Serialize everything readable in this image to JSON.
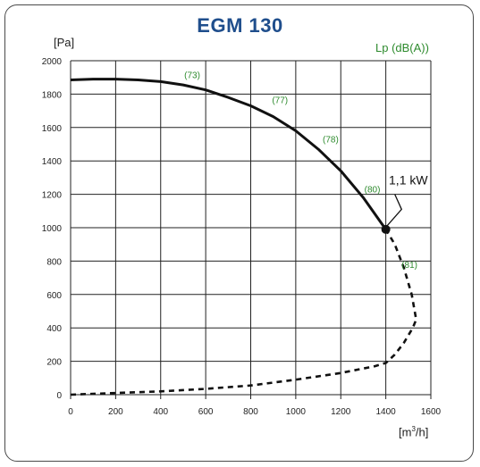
{
  "chart_data": {
    "type": "line",
    "title": "EGM 130",
    "ylabel": "[Pa]",
    "xlabel": "[m³/h]",
    "secondary_label": "Lp (dB(A))",
    "xlim": [
      0,
      1600
    ],
    "ylim": [
      0,
      2000
    ],
    "x_ticks": [
      "0",
      "200",
      "400",
      "600",
      "800",
      "1000",
      "1200",
      "1400",
      "1600"
    ],
    "y_ticks": [
      "0",
      "200",
      "400",
      "600",
      "800",
      "1000",
      "1200",
      "1400",
      "1600",
      "1800",
      "2000"
    ],
    "grid": true,
    "series": [
      {
        "style": "solid",
        "x": [
          0,
          100,
          200,
          300,
          400,
          500,
          600,
          700,
          800,
          900,
          1000,
          1100,
          1200,
          1300,
          1400
        ],
        "y": [
          1885,
          1890,
          1890,
          1885,
          1875,
          1855,
          1825,
          1780,
          1730,
          1665,
          1580,
          1470,
          1340,
          1180,
          990
        ]
      },
      {
        "style": "dashed",
        "x": [
          0,
          200,
          400,
          600,
          800,
          1000,
          1200,
          1350,
          1400,
          1440,
          1480,
          1520,
          1535,
          1515,
          1480,
          1440,
          1400
        ],
        "y": [
          0,
          10,
          20,
          35,
          55,
          90,
          130,
          170,
          190,
          240,
          310,
          400,
          450,
          600,
          760,
          900,
          990
        ]
      }
    ],
    "point": {
      "x": 1400,
      "y": 990
    },
    "annotations": [
      {
        "text": "(73)",
        "x": 540,
        "y": 1895
      },
      {
        "text": "(77)",
        "x": 930,
        "y": 1745
      },
      {
        "text": "(78)",
        "x": 1155,
        "y": 1510
      },
      {
        "text": "(80)",
        "x": 1340,
        "y": 1210
      },
      {
        "text": "(81)",
        "x": 1505,
        "y": 760
      },
      {
        "text": "1,1 kW",
        "x": 1500,
        "y": 1260
      }
    ]
  }
}
